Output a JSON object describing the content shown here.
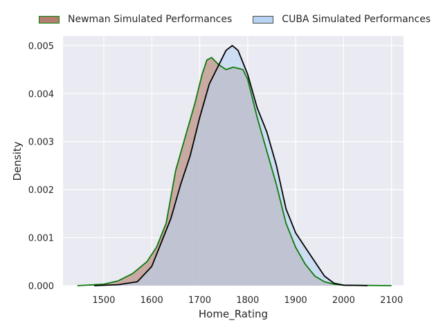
{
  "chart_data": {
    "type": "area",
    "title": "",
    "xlabel": "Home_Rating",
    "ylabel": "Density",
    "xlim": [
      1415,
      2125
    ],
    "ylim": [
      0,
      0.0052
    ],
    "xticks": [
      "1500",
      "1600",
      "1700",
      "1800",
      "1900",
      "2000",
      "2100"
    ],
    "yticks": [
      "0.000",
      "0.001",
      "0.002",
      "0.003",
      "0.004",
      "0.005"
    ],
    "xtick_values": [
      1500,
      1600,
      1700,
      1800,
      1900,
      2000,
      2100
    ],
    "ytick_values": [
      0,
      0.001,
      0.002,
      0.003,
      0.004,
      0.005
    ],
    "grid": true,
    "legend_position": "top",
    "series": [
      {
        "name": "Newman Simulated Performances",
        "line_color": "#0a7a0a",
        "fill_color": "#b37e6e",
        "points": [
          [
            1445,
            0.0
          ],
          [
            1500,
            3e-05
          ],
          [
            1530,
            0.0001
          ],
          [
            1560,
            0.00025
          ],
          [
            1590,
            0.0005
          ],
          [
            1610,
            0.0008
          ],
          [
            1630,
            0.0013
          ],
          [
            1650,
            0.0024
          ],
          [
            1670,
            0.0031
          ],
          [
            1690,
            0.0038
          ],
          [
            1705,
            0.0044
          ],
          [
            1715,
            0.0047
          ],
          [
            1725,
            0.00475
          ],
          [
            1740,
            0.0046
          ],
          [
            1755,
            0.0045
          ],
          [
            1770,
            0.00455
          ],
          [
            1790,
            0.0045
          ],
          [
            1800,
            0.0043
          ],
          [
            1820,
            0.0035
          ],
          [
            1840,
            0.0028
          ],
          [
            1860,
            0.0021
          ],
          [
            1880,
            0.0013
          ],
          [
            1900,
            0.0008
          ],
          [
            1920,
            0.00045
          ],
          [
            1940,
            0.0002
          ],
          [
            1960,
            8e-05
          ],
          [
            1980,
            3e-05
          ],
          [
            2000,
            1e-05
          ],
          [
            2100,
            0.0
          ]
        ]
      },
      {
        "name": "CUBA Simulated Performances",
        "line_color": "#000000",
        "fill_color": "#b9d3f2",
        "points": [
          [
            1480,
            0.0
          ],
          [
            1530,
            2e-05
          ],
          [
            1570,
            8e-05
          ],
          [
            1600,
            0.0004
          ],
          [
            1620,
            0.0009
          ],
          [
            1640,
            0.0014
          ],
          [
            1660,
            0.0021
          ],
          [
            1680,
            0.0027
          ],
          [
            1700,
            0.0035
          ],
          [
            1720,
            0.0042
          ],
          [
            1740,
            0.0046
          ],
          [
            1755,
            0.0049
          ],
          [
            1768,
            0.005
          ],
          [
            1780,
            0.0049
          ],
          [
            1800,
            0.0044
          ],
          [
            1820,
            0.0037
          ],
          [
            1840,
            0.0032
          ],
          [
            1860,
            0.0025
          ],
          [
            1880,
            0.0016
          ],
          [
            1900,
            0.0011
          ],
          [
            1920,
            0.0008
          ],
          [
            1940,
            0.0005
          ],
          [
            1960,
            0.0002
          ],
          [
            1980,
            5e-05
          ],
          [
            2000,
            1e-05
          ],
          [
            2050,
            0.0
          ]
        ]
      }
    ]
  }
}
